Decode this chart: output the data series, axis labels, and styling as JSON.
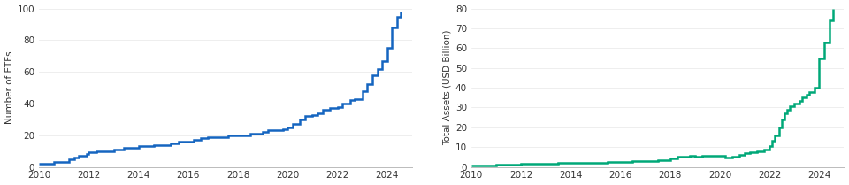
{
  "chart1": {
    "ylabel": "Number of ETFs",
    "ylim": [
      0,
      100
    ],
    "yticks": [
      0,
      20,
      40,
      60,
      80,
      100
    ],
    "xlim": [
      2010.0,
      2025.0
    ],
    "xticks": [
      2010,
      2012,
      2014,
      2016,
      2018,
      2020,
      2022,
      2024
    ],
    "line_color": "#1565c0",
    "line_width": 1.8,
    "data_x": [
      2010.0,
      2010.3,
      2010.6,
      2011.0,
      2011.2,
      2011.4,
      2011.6,
      2011.9,
      2012.0,
      2012.3,
      2012.6,
      2013.0,
      2013.4,
      2013.7,
      2014.0,
      2014.3,
      2014.6,
      2015.0,
      2015.3,
      2015.6,
      2016.0,
      2016.2,
      2016.5,
      2016.8,
      2017.0,
      2017.3,
      2017.6,
      2018.0,
      2018.2,
      2018.5,
      2018.8,
      2019.0,
      2019.2,
      2019.5,
      2019.8,
      2020.0,
      2020.2,
      2020.5,
      2020.7,
      2021.0,
      2021.2,
      2021.4,
      2021.7,
      2022.0,
      2022.2,
      2022.5,
      2022.7,
      2023.0,
      2023.2,
      2023.4,
      2023.6,
      2023.8,
      2024.0,
      2024.2,
      2024.4,
      2024.55
    ],
    "data_y": [
      2,
      2,
      3,
      3,
      5,
      6,
      7,
      8,
      9,
      10,
      10,
      11,
      12,
      12,
      13,
      13,
      14,
      14,
      15,
      16,
      16,
      17,
      18,
      19,
      19,
      19,
      20,
      20,
      20,
      21,
      21,
      22,
      23,
      23,
      24,
      25,
      27,
      30,
      32,
      33,
      34,
      36,
      37,
      38,
      40,
      42,
      43,
      48,
      52,
      58,
      62,
      67,
      75,
      88,
      95,
      98
    ]
  },
  "chart2": {
    "ylabel": "Total Assets (USD Billion)",
    "ylim": [
      0,
      80
    ],
    "yticks": [
      0,
      10,
      20,
      30,
      40,
      50,
      60,
      70,
      80
    ],
    "xlim": [
      2010.0,
      2025.0
    ],
    "xticks": [
      2010,
      2012,
      2014,
      2016,
      2018,
      2020,
      2022,
      2024
    ],
    "line_color": "#00a878",
    "line_width": 1.8,
    "data_x": [
      2010.0,
      2010.5,
      2011.0,
      2011.5,
      2012.0,
      2012.5,
      2013.0,
      2013.5,
      2014.0,
      2014.5,
      2015.0,
      2015.5,
      2016.0,
      2016.5,
      2017.0,
      2017.5,
      2018.0,
      2018.3,
      2018.5,
      2018.8,
      2019.0,
      2019.3,
      2019.6,
      2020.0,
      2020.2,
      2020.5,
      2020.8,
      2021.0,
      2021.2,
      2021.5,
      2021.8,
      2022.0,
      2022.1,
      2022.2,
      2022.4,
      2022.5,
      2022.6,
      2022.7,
      2022.8,
      2023.0,
      2023.2,
      2023.3,
      2023.5,
      2023.6,
      2023.8,
      2024.0,
      2024.2,
      2024.4,
      2024.55
    ],
    "data_y": [
      0.5,
      0.8,
      1.0,
      1.2,
      1.4,
      1.6,
      1.7,
      1.9,
      2.0,
      2.1,
      2.2,
      2.4,
      2.6,
      2.9,
      3.1,
      3.5,
      4.5,
      5.0,
      5.2,
      5.4,
      5.2,
      5.6,
      5.8,
      5.5,
      4.8,
      5.0,
      6.2,
      6.8,
      7.2,
      7.8,
      8.8,
      10.5,
      13.0,
      16.0,
      20.0,
      24.0,
      27.0,
      29.0,
      30.5,
      32.0,
      33.5,
      35.0,
      36.5,
      38.0,
      40.0,
      55.0,
      63.0,
      74.0,
      80.0
    ]
  },
  "bg_color": "#ffffff",
  "tick_color": "#333333",
  "spine_color": "#bbbbbb",
  "grid_color": "#e8e8e8",
  "label_fontsize": 7.5,
  "tick_fontsize": 7.5
}
